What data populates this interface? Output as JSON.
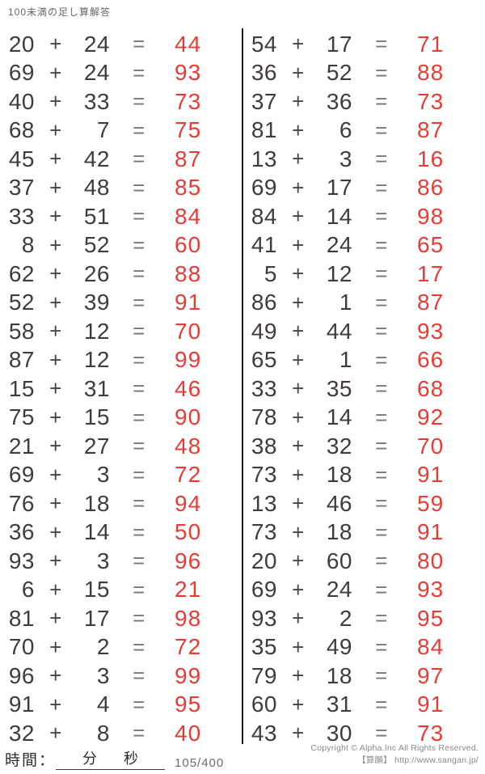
{
  "title": "100未満の足し算解答",
  "operators": {
    "plus": "+",
    "equals": "="
  },
  "problems": {
    "left": [
      {
        "a": "20",
        "b": "24",
        "ans": "44"
      },
      {
        "a": "69",
        "b": "24",
        "ans": "93"
      },
      {
        "a": "40",
        "b": "33",
        "ans": "73"
      },
      {
        "a": "68",
        "b": "7",
        "ans": "75"
      },
      {
        "a": "45",
        "b": "42",
        "ans": "87"
      },
      {
        "a": "37",
        "b": "48",
        "ans": "85"
      },
      {
        "a": "33",
        "b": "51",
        "ans": "84"
      },
      {
        "a": "8",
        "b": "52",
        "ans": "60"
      },
      {
        "a": "62",
        "b": "26",
        "ans": "88"
      },
      {
        "a": "52",
        "b": "39",
        "ans": "91"
      },
      {
        "a": "58",
        "b": "12",
        "ans": "70"
      },
      {
        "a": "87",
        "b": "12",
        "ans": "99"
      },
      {
        "a": "15",
        "b": "31",
        "ans": "46"
      },
      {
        "a": "75",
        "b": "15",
        "ans": "90"
      },
      {
        "a": "21",
        "b": "27",
        "ans": "48"
      },
      {
        "a": "69",
        "b": "3",
        "ans": "72"
      },
      {
        "a": "76",
        "b": "18",
        "ans": "94"
      },
      {
        "a": "36",
        "b": "14",
        "ans": "50"
      },
      {
        "a": "93",
        "b": "3",
        "ans": "96"
      },
      {
        "a": "6",
        "b": "15",
        "ans": "21"
      },
      {
        "a": "81",
        "b": "17",
        "ans": "98"
      },
      {
        "a": "70",
        "b": "2",
        "ans": "72"
      },
      {
        "a": "96",
        "b": "3",
        "ans": "99"
      },
      {
        "a": "91",
        "b": "4",
        "ans": "95"
      },
      {
        "a": "32",
        "b": "8",
        "ans": "40"
      }
    ],
    "right": [
      {
        "a": "54",
        "b": "17",
        "ans": "71"
      },
      {
        "a": "36",
        "b": "52",
        "ans": "88"
      },
      {
        "a": "37",
        "b": "36",
        "ans": "73"
      },
      {
        "a": "81",
        "b": "6",
        "ans": "87"
      },
      {
        "a": "13",
        "b": "3",
        "ans": "16"
      },
      {
        "a": "69",
        "b": "17",
        "ans": "86"
      },
      {
        "a": "84",
        "b": "14",
        "ans": "98"
      },
      {
        "a": "41",
        "b": "24",
        "ans": "65"
      },
      {
        "a": "5",
        "b": "12",
        "ans": "17"
      },
      {
        "a": "86",
        "b": "1",
        "ans": "87"
      },
      {
        "a": "49",
        "b": "44",
        "ans": "93"
      },
      {
        "a": "65",
        "b": "1",
        "ans": "66"
      },
      {
        "a": "33",
        "b": "35",
        "ans": "68"
      },
      {
        "a": "78",
        "b": "14",
        "ans": "92"
      },
      {
        "a": "38",
        "b": "32",
        "ans": "70"
      },
      {
        "a": "73",
        "b": "18",
        "ans": "91"
      },
      {
        "a": "13",
        "b": "46",
        "ans": "59"
      },
      {
        "a": "73",
        "b": "18",
        "ans": "91"
      },
      {
        "a": "20",
        "b": "60",
        "ans": "80"
      },
      {
        "a": "69",
        "b": "24",
        "ans": "93"
      },
      {
        "a": "93",
        "b": "2",
        "ans": "95"
      },
      {
        "a": "35",
        "b": "49",
        "ans": "84"
      },
      {
        "a": "79",
        "b": "18",
        "ans": "97"
      },
      {
        "a": "60",
        "b": "31",
        "ans": "91"
      },
      {
        "a": "43",
        "b": "30",
        "ans": "73"
      }
    ]
  },
  "footer": {
    "time_label": "時間：",
    "minutes_label": "分",
    "seconds_label": "秒",
    "page_counter": "105/400",
    "copyright_line1": "Copyright © Alpha.Inc All Rights Reserved.",
    "copyright_line2": "【算願】 http://www.sangan.jp/"
  },
  "colors": {
    "answer_red": "#e63c35",
    "problem_text": "#413b39",
    "equals_gray": "#7d7673",
    "divider_black": "#1c1c1c"
  }
}
